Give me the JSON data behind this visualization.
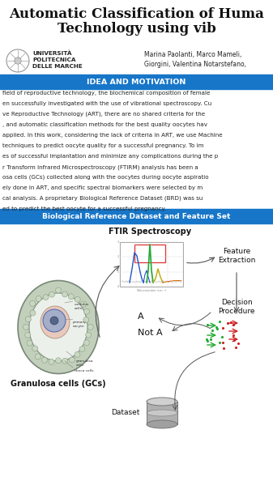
{
  "title_line1": "Automatic Classification of Huma",
  "title_line2": "Technology using vib",
  "university": "UNIVERSITÀ\nPOLITECNICA\nDELLE MARCHE",
  "authors": "Marina Paolanti, Marco Mameli,\nGiorgini, Valentina Notarstefano,",
  "section1_title": "IDEA AND MOTIVATION",
  "body_lines": [
    "field of reproductive technology, the biochemical composition of female",
    "en successfully investigated with the use of vibrational spectroscopy. Cu",
    "ve Reproductive Technology (ART), there are no shared criteria for the",
    ", and automatic classification methods for the best quality oocytes hav",
    "applied. In this work, considering the lack of criteria in ART, we use Machine",
    "techniques to predict oocyte quality for a successful pregnancy. To im",
    "es of successful implantation and minimize any complications during the p",
    "r Transform Infrared Microspectroscopy (FTIRM) analysis has been a",
    "osa cells (GCs) collected along with the oocytes during oocyte aspiratio",
    "ely done in ART, and specific spectral biomarkers were selected by m",
    "cal analysis. A proprietary Biological Reference Dataset (BRD) was su",
    "ed to predict the best oocyte for a successful pregnancy."
  ],
  "section2_title": "Biological Reference Dataset and Feature Set",
  "ftir_label": "FTIR Spectroscopy",
  "feature_label": "Feature\nExtraction",
  "decision_label": "Decision\nProcedure",
  "gc_label": "Granulosa cells (GCs)",
  "a_label": "A",
  "nota_label": "Not A",
  "dataset_label": "Dataset",
  "header_bg": "#ffffff",
  "blue_header": "#1776c8",
  "blue_header_fg": "#ffffff",
  "title_color": "#111111",
  "body_text_color": "#222222",
  "fig_width": 3.37,
  "fig_height": 5.99,
  "dpi": 100
}
